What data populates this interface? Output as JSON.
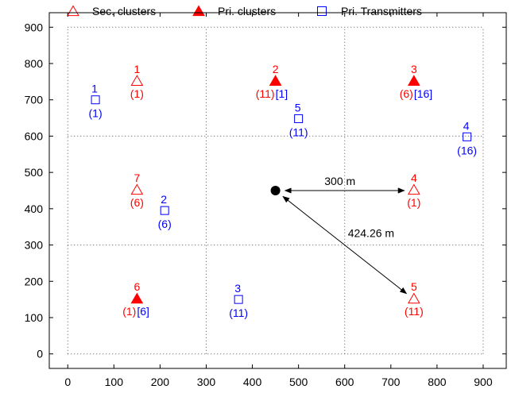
{
  "chart_data": {
    "type": "scatter",
    "title": "",
    "xlabel": "",
    "ylabel": "",
    "xlim": [
      -40,
      950
    ],
    "ylim": [
      -40,
      940
    ],
    "x_ticks": [
      0,
      100,
      200,
      300,
      400,
      500,
      600,
      700,
      800,
      900
    ],
    "y_ticks": [
      0,
      100,
      200,
      300,
      400,
      500,
      600,
      700,
      800,
      900
    ],
    "grid": "dotted",
    "legend_placement": "top",
    "legend": [
      {
        "label": "Sec. clusters",
        "marker": "triangle-open",
        "color": "#ff0000"
      },
      {
        "label": "Pri. clusters",
        "marker": "triangle-filled",
        "color": "#ff0000"
      },
      {
        "label": "Pri. Transmitters",
        "marker": "square-open",
        "color": "#0000ff"
      }
    ],
    "colors": {
      "red": "#ff0000",
      "blue": "#0000ff",
      "black": "#000000"
    },
    "grid_lines": [
      0,
      300,
      600,
      900
    ],
    "clusters": [
      {
        "id": "1",
        "x": 150,
        "y": 750,
        "primary": false,
        "assoc": "(1)",
        "tx": ""
      },
      {
        "id": "2",
        "x": 450,
        "y": 750,
        "primary": true,
        "assoc": "(11)",
        "tx": "[1]"
      },
      {
        "id": "3",
        "x": 750,
        "y": 750,
        "primary": true,
        "assoc": "(6)",
        "tx": "[16]"
      },
      {
        "id": "4",
        "x": 750,
        "y": 450,
        "primary": false,
        "assoc": "(1)",
        "tx": ""
      },
      {
        "id": "5",
        "x": 750,
        "y": 150,
        "primary": false,
        "assoc": "(11)",
        "tx": ""
      },
      {
        "id": "6",
        "x": 150,
        "y": 150,
        "primary": true,
        "assoc": "(1)",
        "tx": "[6]"
      },
      {
        "id": "7",
        "x": 150,
        "y": 450,
        "primary": false,
        "assoc": "(6)",
        "tx": ""
      }
    ],
    "transmitters": [
      {
        "id": "1",
        "x": 60,
        "y": 700,
        "assoc": "(1)"
      },
      {
        "id": "2",
        "x": 210,
        "y": 395,
        "assoc": "(6)"
      },
      {
        "id": "3",
        "x": 370,
        "y": 150,
        "assoc": "(11)"
      },
      {
        "id": "4",
        "x": 865,
        "y": 598,
        "assoc": "(16)"
      },
      {
        "id": "5",
        "x": 500,
        "y": 648,
        "assoc": "(11)"
      }
    ],
    "center": {
      "x": 450,
      "y": 450
    },
    "annotations": [
      {
        "text": "300 m",
        "from": [
          450,
          450
        ],
        "to": [
          750,
          450
        ]
      },
      {
        "text": "424.26 m",
        "from": [
          450,
          450
        ],
        "to": [
          750,
          150
        ]
      }
    ]
  }
}
